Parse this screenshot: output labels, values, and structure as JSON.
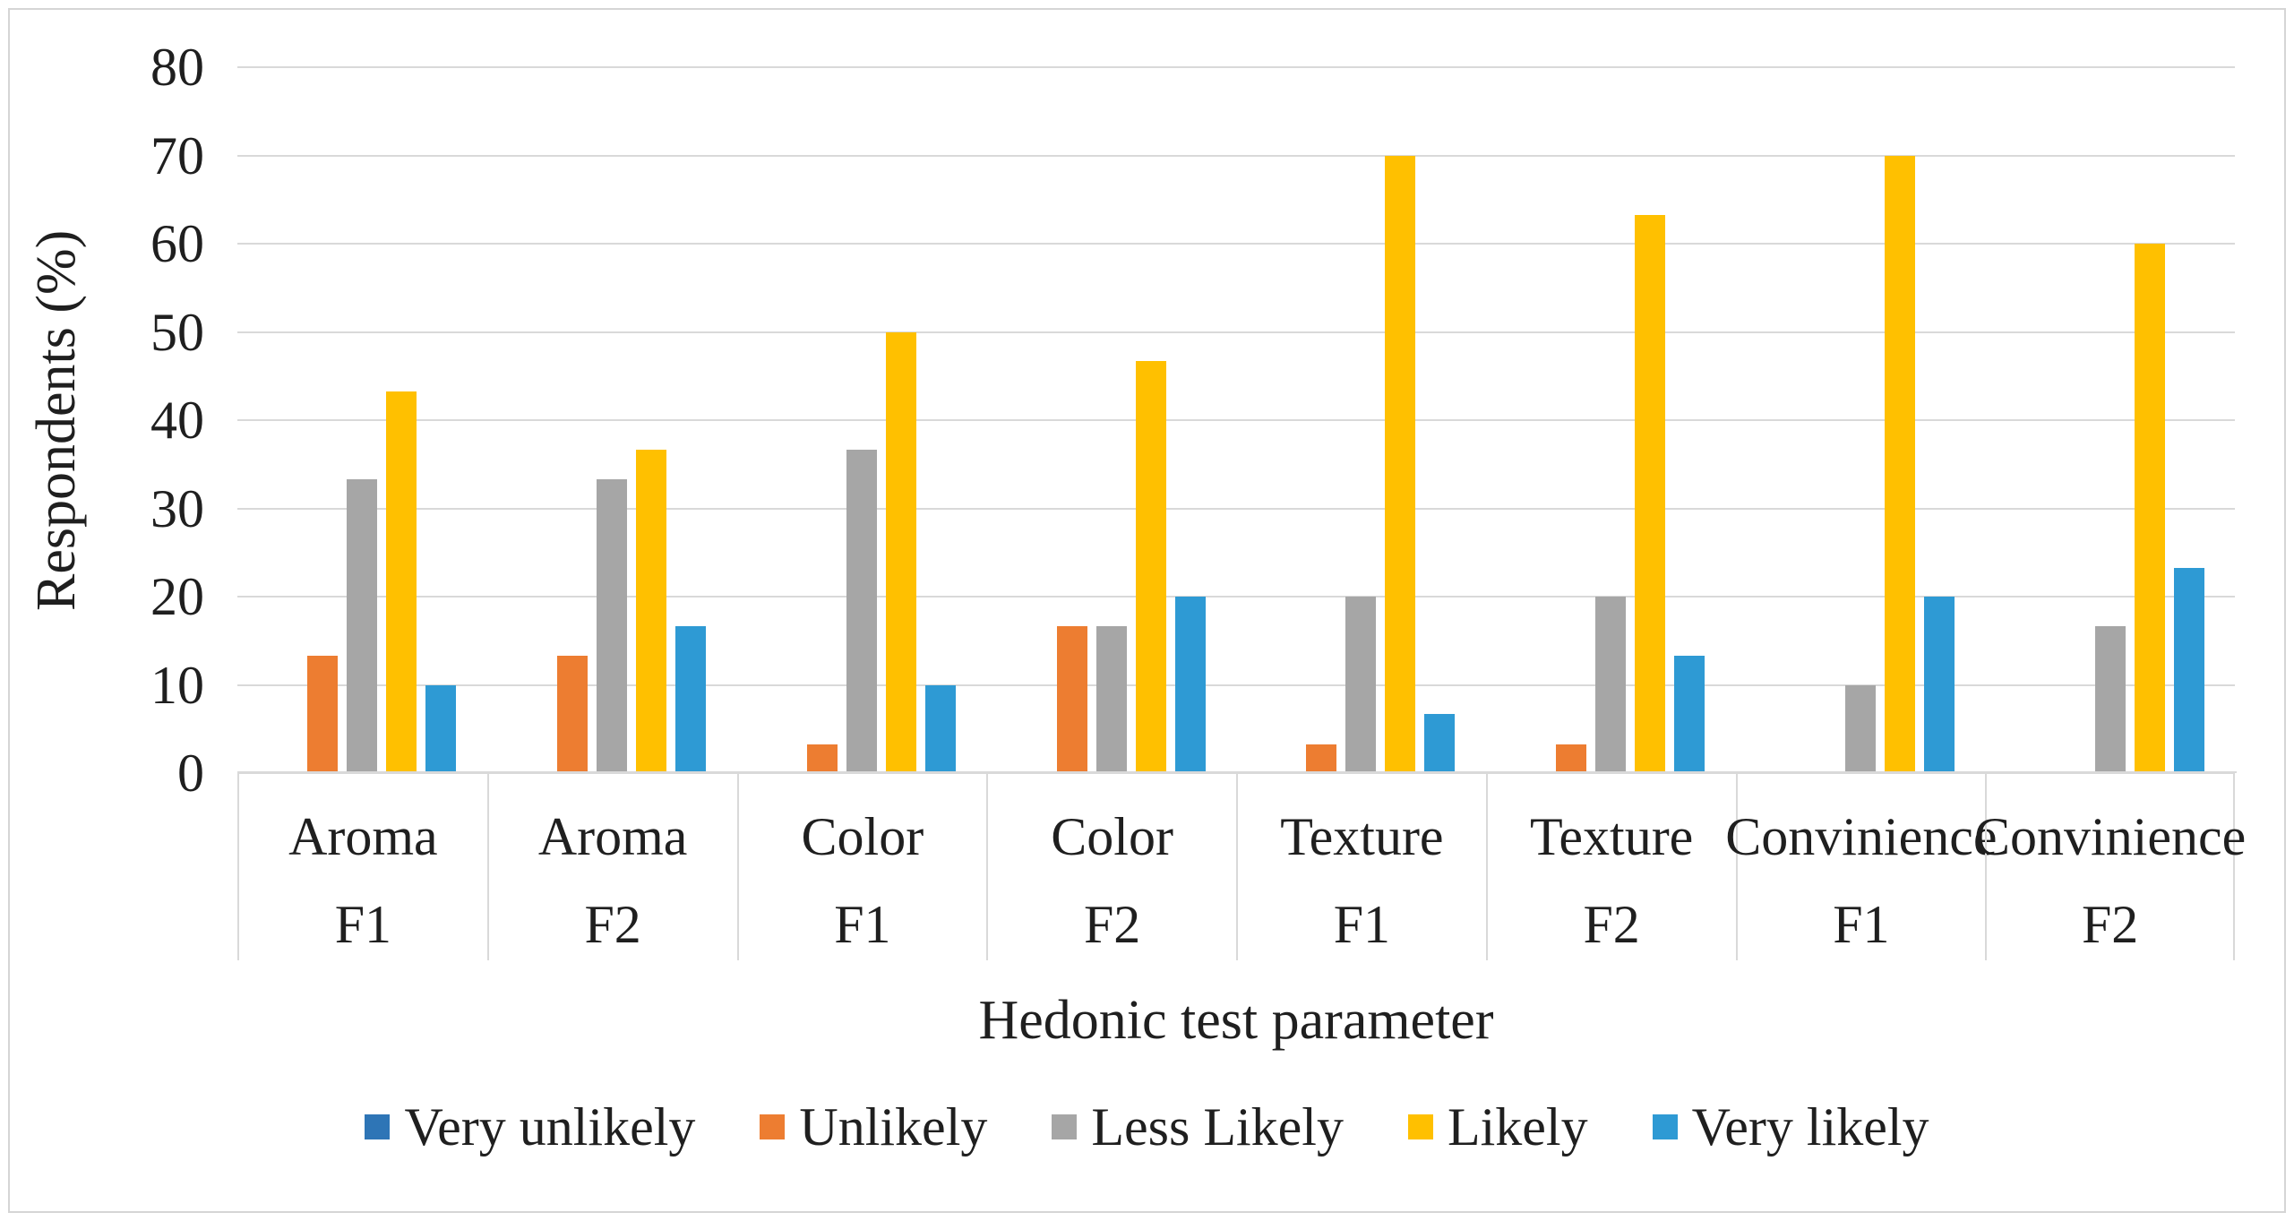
{
  "chart_data": {
    "type": "bar",
    "title": "",
    "xlabel": "Hedonic test parameter",
    "ylabel": "Respondents (%)",
    "ylim": [
      0,
      80
    ],
    "yticks": [
      0,
      10,
      20,
      30,
      40,
      50,
      60,
      70,
      80
    ],
    "grid": "horizontal-only",
    "grid_color": "#D9D9D9",
    "legend_position": "bottom",
    "categories": [
      {
        "parameter": "Aroma",
        "formulation": "F1"
      },
      {
        "parameter": "Aroma",
        "formulation": "F2"
      },
      {
        "parameter": "Color",
        "formulation": "F1"
      },
      {
        "parameter": "Color",
        "formulation": "F2"
      },
      {
        "parameter": "Texture",
        "formulation": "F1"
      },
      {
        "parameter": "Texture",
        "formulation": "F2"
      },
      {
        "parameter": "Convinience",
        "formulation": "F1"
      },
      {
        "parameter": "Convinience",
        "formulation": "F2"
      }
    ],
    "series": [
      {
        "name": "Very unlikely",
        "color": "#2E75B6",
        "values": [
          0,
          0,
          0,
          0,
          0,
          0,
          0,
          0
        ]
      },
      {
        "name": "Unlikely",
        "color": "#ED7D31",
        "values": [
          13.3,
          13.3,
          3.3,
          16.7,
          3.3,
          3.3,
          0,
          0
        ]
      },
      {
        "name": "Less Likely",
        "color": "#A6A6A6",
        "values": [
          33.3,
          33.3,
          36.7,
          16.7,
          20,
          20,
          10,
          16.7
        ]
      },
      {
        "name": "Likely",
        "color": "#FFC000",
        "values": [
          43.3,
          36.7,
          50,
          46.7,
          70,
          63.3,
          70,
          60
        ]
      },
      {
        "name": "Very likely",
        "color": "#2E9AD4",
        "values": [
          10,
          16.7,
          10,
          20,
          6.7,
          13.3,
          20,
          23.3
        ]
      }
    ]
  }
}
